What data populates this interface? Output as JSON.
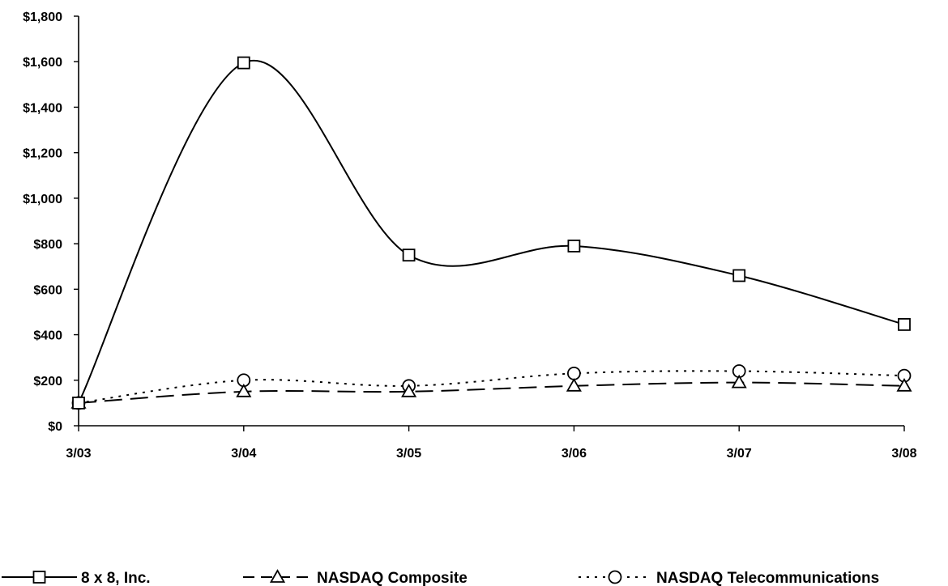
{
  "chart_data": {
    "type": "line",
    "title": "",
    "xlabel": "",
    "ylabel": "",
    "x": [
      "3/03",
      "3/04",
      "3/05",
      "3/06",
      "3/07",
      "3/08"
    ],
    "ylim": [
      0,
      1800
    ],
    "y_ticks": [
      0,
      200,
      400,
      600,
      800,
      1000,
      1200,
      1400,
      1600,
      1800
    ],
    "y_tick_labels": [
      "$0",
      "$200",
      "$400",
      "$600",
      "$800",
      "$1,000",
      "$1,200",
      "$1,400",
      "$1,600",
      "$1,800"
    ],
    "grid": false,
    "legend_position": "bottom",
    "smoothed": true,
    "series": [
      {
        "name": "8 x 8, Inc.",
        "values": [
          100,
          1595,
          750,
          790,
          660,
          445
        ],
        "marker": "square",
        "line_style": "solid",
        "color": "#000000"
      },
      {
        "name": "NASDAQ Composite",
        "values": [
          100,
          150,
          150,
          175,
          190,
          175
        ],
        "marker": "triangle",
        "line_style": "dashed",
        "color": "#000000"
      },
      {
        "name": "NASDAQ Telecommunications",
        "values": [
          100,
          200,
          175,
          230,
          240,
          220
        ],
        "marker": "circle",
        "line_style": "dotted",
        "color": "#000000"
      }
    ]
  }
}
